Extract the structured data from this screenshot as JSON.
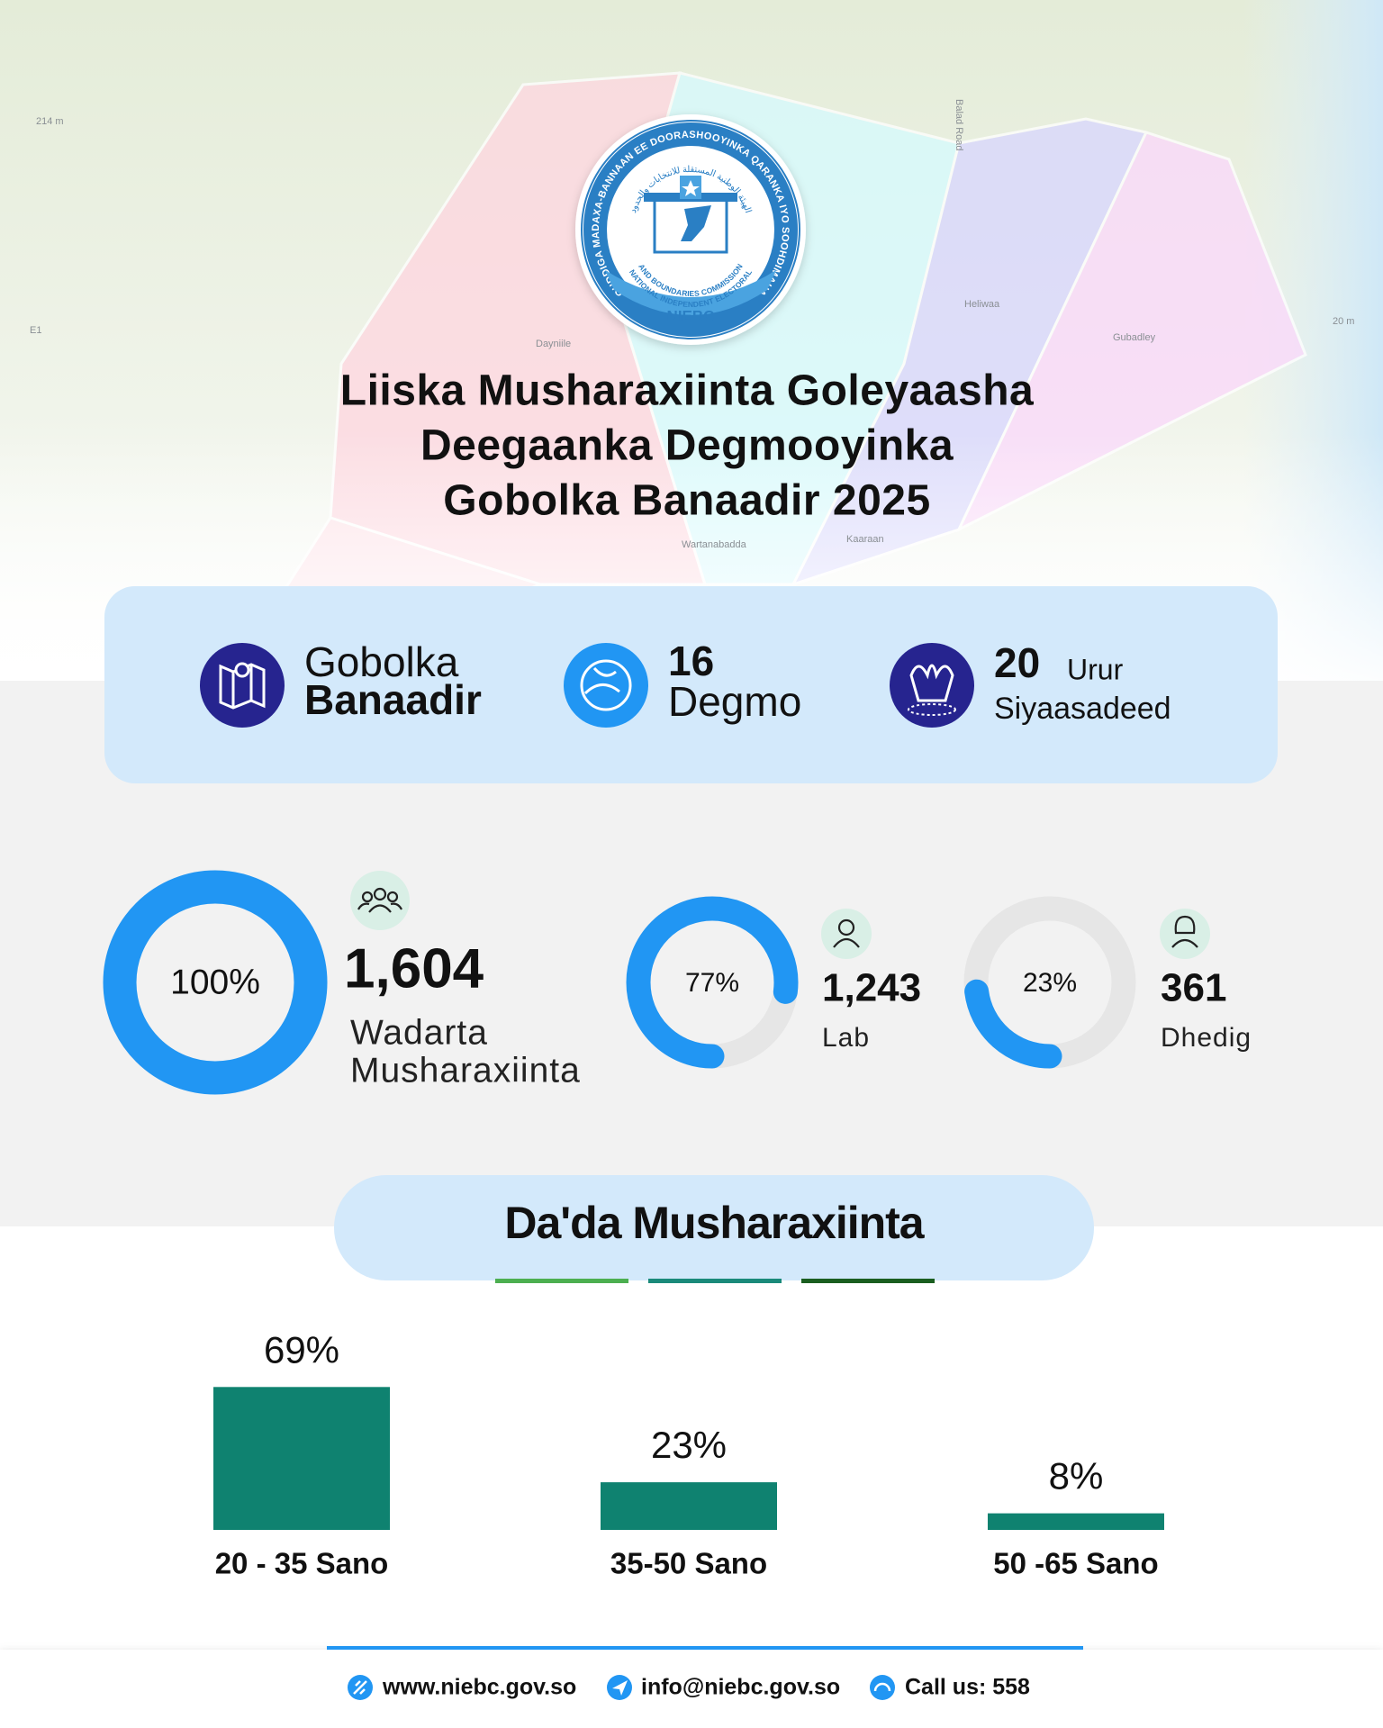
{
  "map": {
    "labels": [
      "214 m",
      "Balad Road",
      "Dayniile",
      "Heliwaa",
      "Gubadley",
      "Wartanabadda",
      "Kaaraan",
      "E1",
      "20 m"
    ]
  },
  "logo": {
    "ring_text": "GUDDIGA MADAXA-BANNAAN EE DOORASHOOYINKA QARANKA IYO SOOHDIMAHA",
    "arabic_text": "الهيئة الوطنية المستقلة للانتخابات والحدود",
    "inner_lines": [
      "NATIONAL INDEPENDENT ELECTORAL",
      "AND BOUNDARIES COMMISSION"
    ],
    "name": "NIEBC"
  },
  "title": [
    "Liiska Musharaxiinta Goleyaasha",
    "Deegaanka Degmooyinka",
    "Gobolka Banaadir 2025"
  ],
  "stats": [
    {
      "line1": "Gobolka",
      "line2": "Banaadir"
    },
    {
      "number": "16",
      "label": "Degmo"
    },
    {
      "number": "20",
      "unit": "Urur",
      "label": "Siyaasadeed"
    }
  ],
  "chart_data": [
    {
      "type": "donut",
      "values": [
        100
      ],
      "value_labels": [
        "100%"
      ],
      "color": "#2196f3",
      "count": "1,604",
      "label": [
        "Wadarta",
        "Musharaxiinta"
      ]
    },
    {
      "type": "donut",
      "values": [
        77
      ],
      "value_labels": [
        "77%"
      ],
      "color": "#2196f3",
      "count": "1,243",
      "label": [
        "Lab"
      ]
    },
    {
      "type": "donut",
      "values": [
        23
      ],
      "value_labels": [
        "23%"
      ],
      "color": "#2196f3",
      "count": "361",
      "label": [
        "Dhedig"
      ]
    },
    {
      "type": "bar",
      "title": "Da'da Musharaxiinta",
      "categories": [
        "20 - 35 Sano",
        "35-50 Sano",
        "50 -65 Sano"
      ],
      "values": [
        69,
        23,
        8
      ],
      "value_labels": [
        "69%",
        "23%",
        "8%"
      ],
      "color": "#0f8270",
      "ylim": [
        0,
        70
      ]
    }
  ],
  "footer": {
    "website": "www.niebc.gov.so",
    "email": "info@niebc.gov.so",
    "phone": "Call us: 558"
  }
}
